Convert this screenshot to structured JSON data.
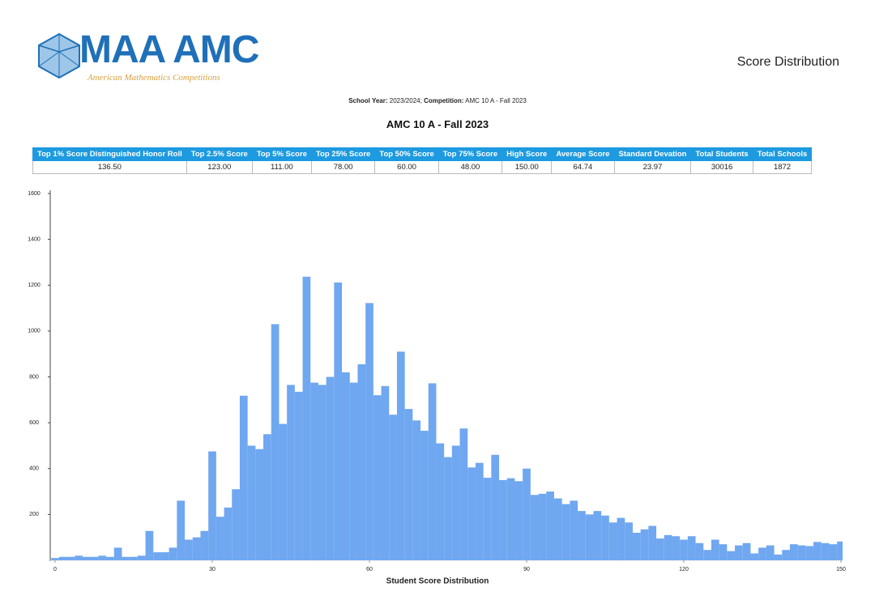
{
  "header": {
    "logo": "MAA AMC",
    "logo_subtitle": "American Mathematics Competitions",
    "page_title": "Score Distribution"
  },
  "info": [
    {
      "label": "School Year:",
      "value": "2023/2024;"
    },
    {
      "label": "Competition:",
      "value": "AMC 10 A - Fall 2023"
    }
  ],
  "title": "AMC 10 A - Fall 2023",
  "table": {
    "headers": [
      "Top 1% Score Distinguished Honor Roll",
      "Top 2.5% Score",
      "Top 5% Score",
      "Top 25% Score",
      "Top 50% Score",
      "Top 75% Score",
      "High Score",
      "Average Score",
      "Standard Devation",
      "Total Students",
      "Total Schools"
    ],
    "rows": [
      [
        "136.50",
        "123.00",
        "111.00",
        "78.00",
        "60.00",
        "48.00",
        "150.00",
        "64.74",
        "23.97",
        "30016",
        "1872"
      ]
    ]
  },
  "chart_data": {
    "type": "bar",
    "xlabel": "Student Score Distribution",
    "color": "#6fa7f0",
    "x": [
      0,
      1.5,
      3,
      4.5,
      6,
      7.5,
      9,
      10.5,
      12,
      13.5,
      15,
      16.5,
      18,
      19.5,
      21,
      22.5,
      24,
      25.5,
      27,
      28.5,
      30,
      31.5,
      33,
      34.5,
      36,
      37.5,
      39,
      40.5,
      42,
      43.5,
      45,
      46.5,
      48,
      49.5,
      51,
      52.5,
      54,
      55.5,
      57,
      58.5,
      60,
      61.5,
      63,
      64.5,
      66,
      67.5,
      69,
      70.5,
      72,
      73.5,
      75,
      76.5,
      78,
      79.5,
      81,
      82.5,
      84,
      85.5,
      87,
      88.5,
      90,
      91.5,
      93,
      94.5,
      96,
      97.5,
      99,
      100.5,
      102,
      103.5,
      105,
      106.5,
      108,
      109.5,
      111,
      112.5,
      114,
      115.5,
      117,
      118.5,
      120,
      121.5,
      123,
      124.5,
      126,
      127.5,
      129,
      130.5,
      132,
      133.5,
      135,
      136.5,
      138,
      139.5,
      141,
      142.5,
      144,
      145.5,
      147,
      148.5,
      150
    ],
    "values": [
      10,
      15,
      15,
      20,
      15,
      15,
      20,
      15,
      55,
      15,
      15,
      20,
      128,
      35,
      35,
      55,
      260,
      90,
      100,
      128,
      475,
      190,
      230,
      310,
      718,
      500,
      485,
      550,
      1030,
      595,
      765,
      735,
      1237,
      775,
      765,
      800,
      1212,
      820,
      775,
      855,
      1122,
      720,
      760,
      635,
      910,
      660,
      610,
      565,
      772,
      510,
      450,
      500,
      575,
      405,
      425,
      360,
      460,
      350,
      358,
      345,
      400,
      285,
      290,
      300,
      270,
      245,
      260,
      215,
      200,
      215,
      195,
      165,
      185,
      165,
      120,
      135,
      150,
      95,
      110,
      105,
      90,
      105,
      75,
      45,
      90,
      70,
      40,
      65,
      75,
      30,
      55,
      65,
      25,
      45,
      70,
      65,
      62,
      80,
      75,
      70,
      82
    ],
    "xlim": [
      0,
      150
    ],
    "xticks": [
      0,
      30,
      60,
      90,
      120,
      150
    ],
    "ylim": [
      0,
      1600
    ],
    "yticks": [
      200,
      400,
      600,
      800,
      1000,
      1200,
      1400,
      1600
    ],
    "grid": false
  }
}
